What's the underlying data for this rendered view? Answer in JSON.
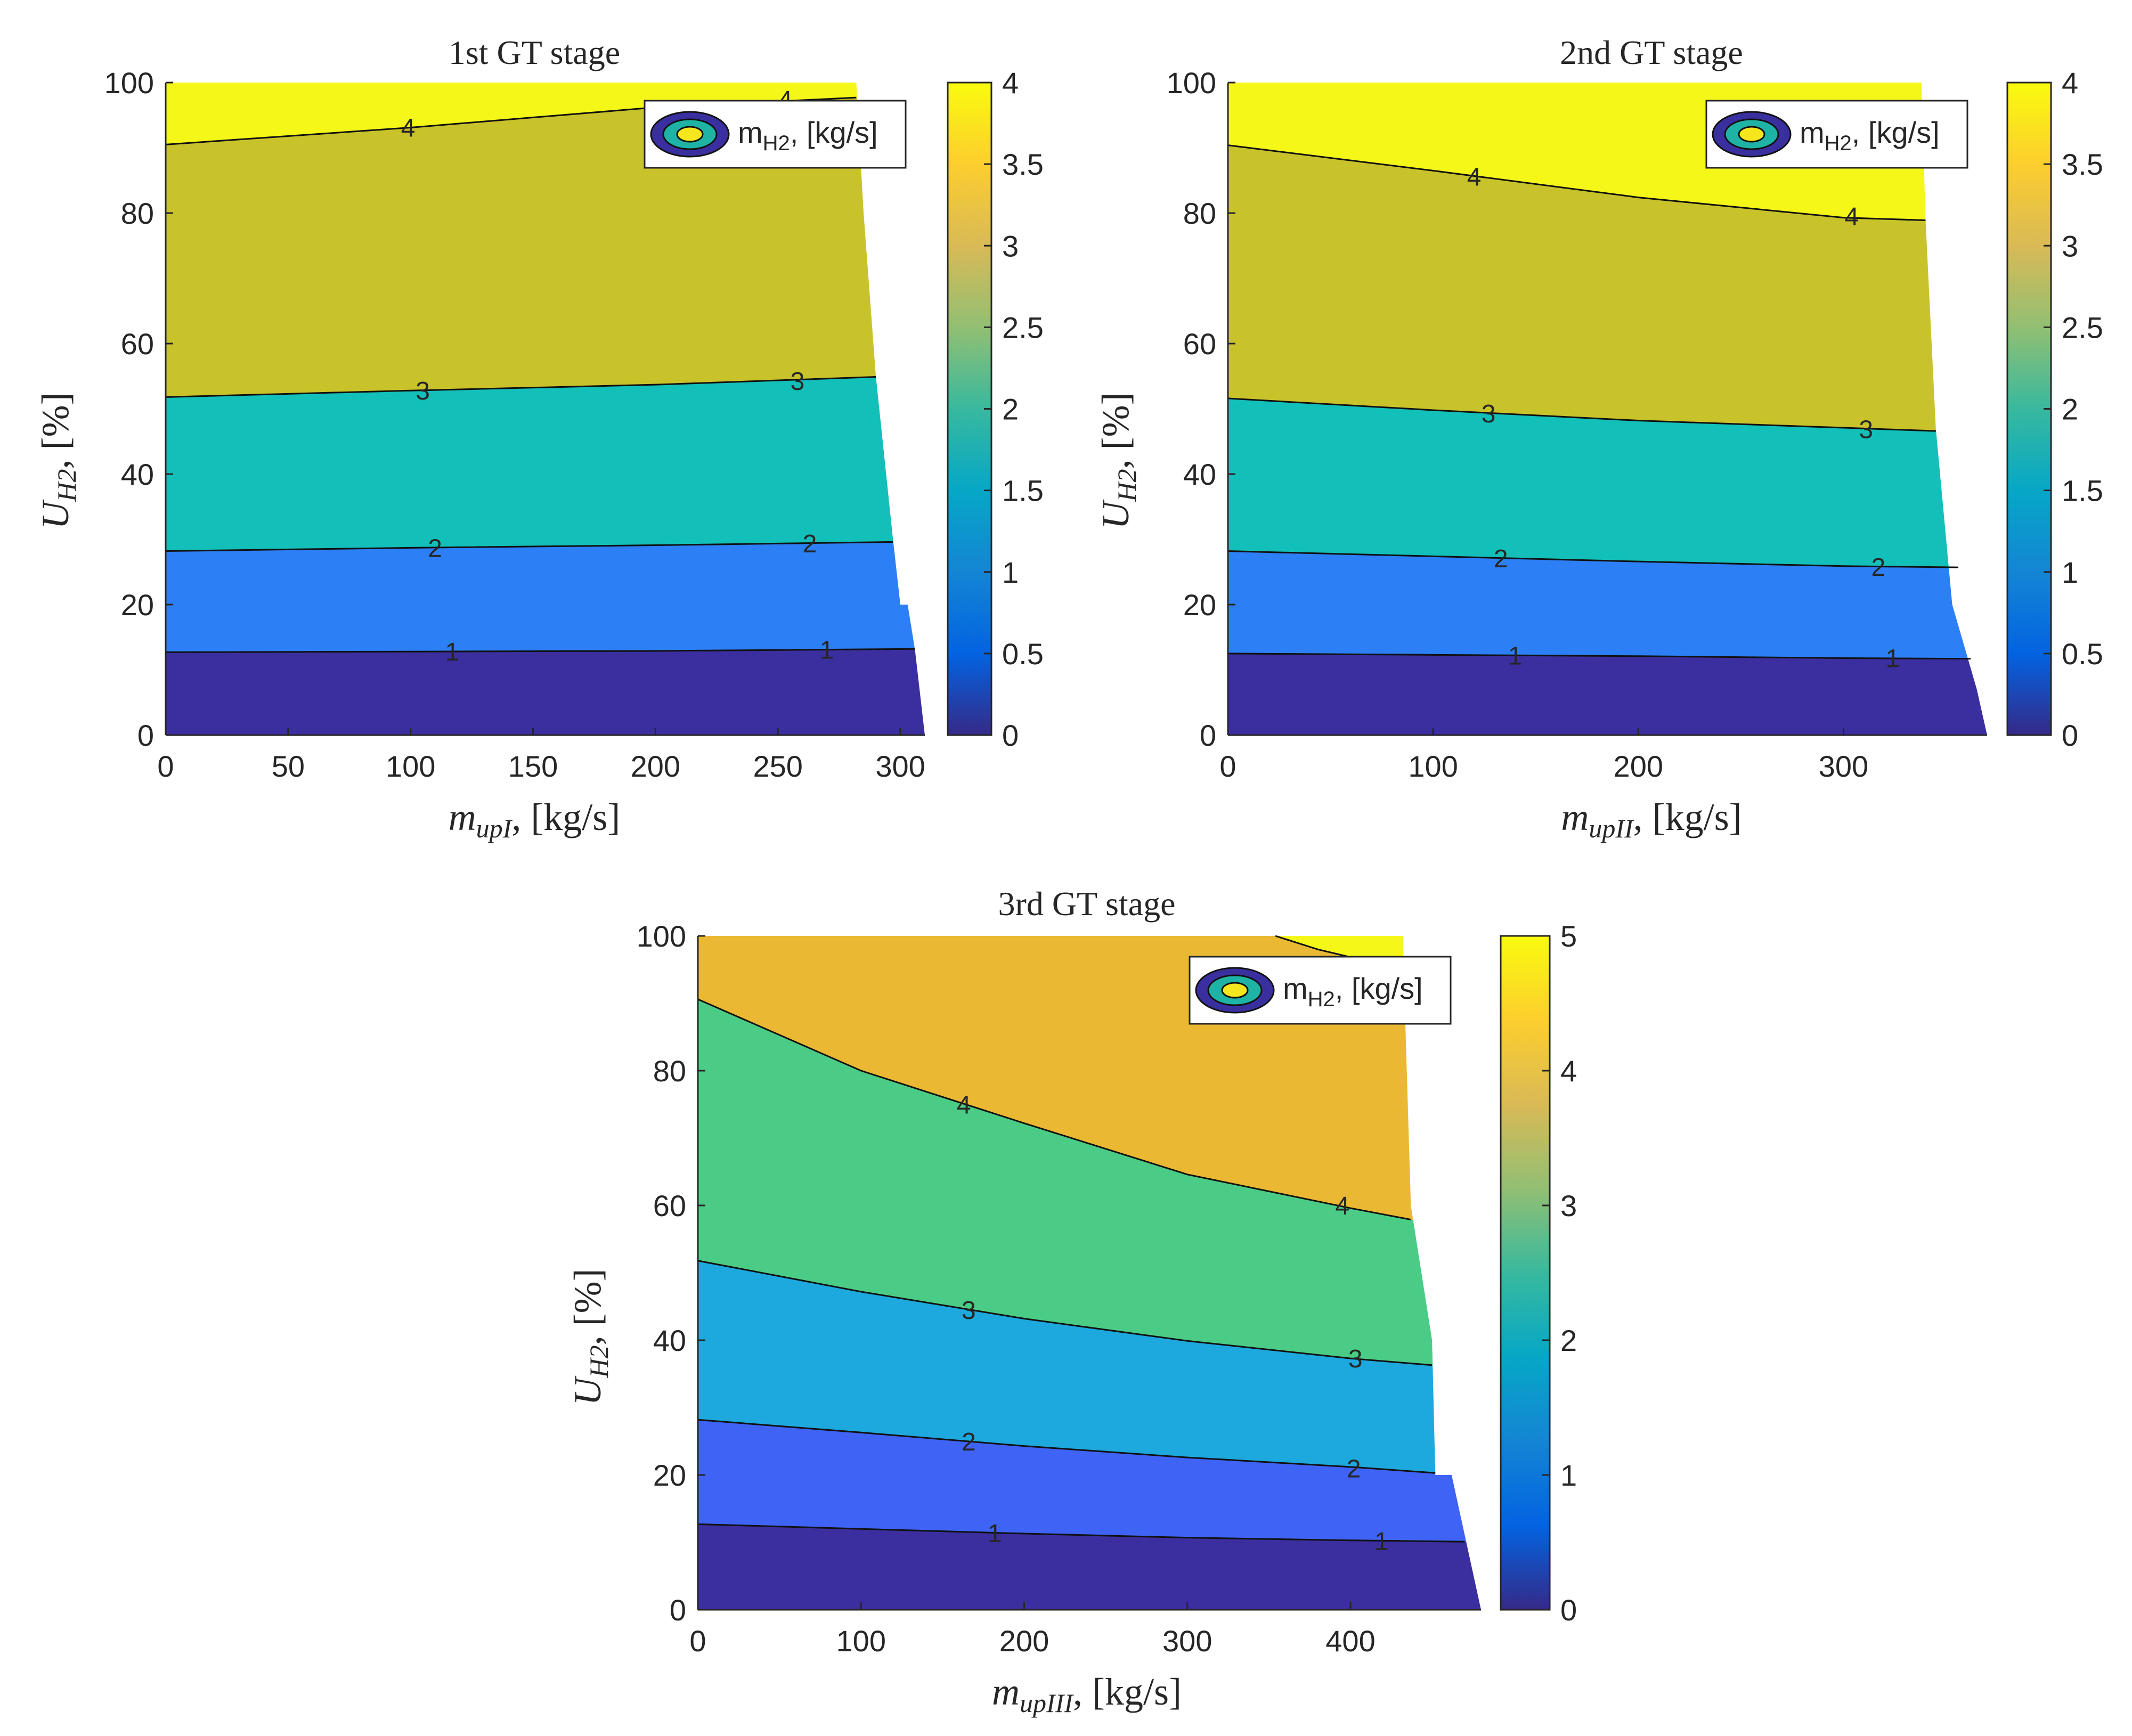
{
  "figure": {
    "description_units": "Hydrogen mass flow contour maps for three gas turbine stages",
    "colors": {
      "axis": "#262626",
      "contour_line": "#111111",
      "legend_outer": "#3a2f9e",
      "legend_mid": "#1fb3a6",
      "legend_inner": "#f5e61d"
    }
  },
  "chart_data": [
    {
      "id": "stage1",
      "type": "contourf",
      "title": "1st GT stage",
      "xlabel": {
        "var": "m",
        "sub": "upI",
        "units": ", [kg/s]"
      },
      "ylabel": {
        "var": "U",
        "sub": "H2",
        "units": ", [%]"
      },
      "xlim": [
        0,
        310
      ],
      "ylim": [
        0,
        100
      ],
      "xticks": [
        "0",
        "50",
        "100",
        "150",
        "200",
        "250",
        "300"
      ],
      "xtick_values": [
        0,
        50,
        100,
        150,
        200,
        250,
        300
      ],
      "yticks": [
        "0",
        "20",
        "40",
        "60",
        "80",
        "100"
      ],
      "ytick_values": [
        0,
        20,
        40,
        60,
        80,
        100
      ],
      "clim": [
        0,
        4
      ],
      "colorbar_ticks": [
        "0",
        "0.5",
        "1",
        "1.5",
        "2",
        "2.5",
        "3",
        "3.5",
        "4"
      ],
      "colorbar_values": [
        0,
        0.5,
        1,
        1.5,
        2,
        2.5,
        3,
        3.5,
        4
      ],
      "legend": {
        "text": "m",
        "sub": "H2",
        "units": ", [kg/s]"
      },
      "boundary": [
        [
          282,
          100
        ],
        [
          285,
          80
        ],
        [
          290,
          55
        ],
        [
          297,
          30
        ],
        [
          300,
          20
        ],
        [
          303,
          20
        ],
        [
          306,
          13
        ],
        [
          310,
          0
        ]
      ],
      "levels": [
        {
          "level": 1,
          "points": [
            [
              0,
              12.7
            ],
            [
              100,
              12.8
            ],
            [
              200,
              12.9
            ],
            [
              306,
              13.2
            ]
          ],
          "labels": [
            [
              117,
              12.8
            ],
            [
              270,
              13.1
            ]
          ]
        },
        {
          "level": 2,
          "points": [
            [
              0,
              28.2
            ],
            [
              100,
              28.7
            ],
            [
              200,
              29.1
            ],
            [
              297,
              29.6
            ]
          ],
          "labels": [
            [
              110,
              28.7
            ],
            [
              263,
              29.4
            ]
          ]
        },
        {
          "level": 3,
          "points": [
            [
              0,
              51.8
            ],
            [
              100,
              52.8
            ],
            [
              200,
              53.7
            ],
            [
              290,
              54.9
            ]
          ],
          "labels": [
            [
              105,
              52.8
            ],
            [
              258,
              54.3
            ]
          ]
        },
        {
          "level": 4,
          "points": [
            [
              0,
              90.5
            ],
            [
              100,
              93.1
            ],
            [
              200,
              96.2
            ],
            [
              282,
              97.7
            ]
          ],
          "labels": [
            [
              99,
              93.1
            ],
            [
              253,
              97.4
            ]
          ]
        }
      ],
      "band_colors": [
        "#3b2fa0",
        "#2d7ff5",
        "#13bfb9",
        "#c9c32b",
        "#f5f719"
      ]
    },
    {
      "id": "stage2",
      "type": "contourf",
      "title": "2nd GT stage",
      "xlabel": {
        "var": "m",
        "sub": "upII",
        "units": ", [kg/s]"
      },
      "ylabel": {
        "var": "U",
        "sub": "H2",
        "units": ", [%]"
      },
      "xlim": [
        0,
        370
      ],
      "ylim": [
        0,
        100
      ],
      "xticks": [
        "0",
        "100",
        "200",
        "300"
      ],
      "xtick_values": [
        0,
        100,
        200,
        300
      ],
      "yticks": [
        "0",
        "20",
        "40",
        "60",
        "80",
        "100"
      ],
      "ytick_values": [
        0,
        20,
        40,
        60,
        80,
        100
      ],
      "clim": [
        0,
        4
      ],
      "colorbar_ticks": [
        "0",
        "0.5",
        "1",
        "1.5",
        "2",
        "2.5",
        "3",
        "3.5",
        "4"
      ],
      "colorbar_values": [
        0,
        0.5,
        1,
        1.5,
        2,
        2.5,
        3,
        3.5,
        4
      ],
      "legend": {
        "text": "m",
        "sub": "H2",
        "units": ", [kg/s]"
      },
      "boundary": [
        [
          338,
          100
        ],
        [
          340,
          79
        ],
        [
          345,
          47
        ],
        [
          353,
          20
        ],
        [
          365,
          7
        ],
        [
          370,
          0
        ]
      ],
      "levels": [
        {
          "level": 1,
          "points": [
            [
              0,
              12.5
            ],
            [
              100,
              12.3
            ],
            [
              200,
              12.1
            ],
            [
              300,
              11.8
            ],
            [
              362,
              11.7
            ]
          ],
          "labels": [
            [
              140,
              12.2
            ],
            [
              324,
              11.8
            ]
          ]
        },
        {
          "level": 2,
          "points": [
            [
              0,
              28.2
            ],
            [
              100,
              27.4
            ],
            [
              200,
              26.6
            ],
            [
              300,
              25.9
            ],
            [
              356,
              25.7
            ]
          ],
          "labels": [
            [
              133,
              27.1
            ],
            [
              317,
              25.8
            ]
          ]
        },
        {
          "level": 3,
          "points": [
            [
              0,
              51.6
            ],
            [
              100,
              49.8
            ],
            [
              200,
              48.2
            ],
            [
              300,
              47.1
            ],
            [
              345,
              46.6
            ]
          ],
          "labels": [
            [
              127,
              49.3
            ],
            [
              311,
              46.9
            ]
          ]
        },
        {
          "level": 4,
          "points": [
            [
              0,
              90.4
            ],
            [
              100,
              86.5
            ],
            [
              200,
              82.4
            ],
            [
              300,
              79.3
            ],
            [
              340,
              78.9
            ]
          ],
          "labels": [
            [
              120,
              85.6
            ],
            [
              304,
              79.5
            ]
          ]
        }
      ],
      "band_colors": [
        "#3b2fa0",
        "#2d7ff5",
        "#13bfb9",
        "#c9c32b",
        "#f5f719"
      ]
    },
    {
      "id": "stage3",
      "type": "contourf",
      "title": "3rd GT stage",
      "xlabel": {
        "var": "m",
        "sub": "upIII",
        "units": ", [kg/s]"
      },
      "ylabel": {
        "var": "U",
        "sub": "H2",
        "units": ", [%]"
      },
      "xlim": [
        0,
        480
      ],
      "ylim": [
        0,
        100
      ],
      "xticks": [
        "0",
        "100",
        "200",
        "300",
        "400"
      ],
      "xtick_values": [
        0,
        100,
        200,
        300,
        400
      ],
      "yticks": [
        "0",
        "20",
        "40",
        "60",
        "80",
        "100"
      ],
      "ytick_values": [
        0,
        20,
        40,
        60,
        80,
        100
      ],
      "clim": [
        0,
        5
      ],
      "colorbar_ticks": [
        "0",
        "1",
        "2",
        "3",
        "4",
        "5"
      ],
      "colorbar_values": [
        0,
        1,
        2,
        3,
        4,
        5
      ],
      "legend": {
        "text": "m",
        "sub": "H2",
        "units": ", [kg/s]"
      },
      "boundary": [
        [
          432,
          100
        ],
        [
          437,
          60
        ],
        [
          450,
          40
        ],
        [
          452,
          20
        ],
        [
          462,
          20
        ],
        [
          480,
          0
        ]
      ],
      "levels": [
        {
          "level": 1,
          "points": [
            [
              0,
              12.7
            ],
            [
              100,
              12.0
            ],
            [
              200,
              11.3
            ],
            [
              300,
              10.7
            ],
            [
              400,
              10.3
            ],
            [
              470,
              10.1
            ]
          ],
          "labels": [
            [
              182,
              11.4
            ],
            [
              419,
              10.2
            ]
          ]
        },
        {
          "level": 2,
          "points": [
            [
              0,
              28.2
            ],
            [
              100,
              26.3
            ],
            [
              200,
              24.3
            ],
            [
              300,
              22.6
            ],
            [
              400,
              21.2
            ],
            [
              452,
              20.3
            ]
          ],
          "labels": [
            [
              166,
              25.0
            ],
            [
              402,
              21.0
            ]
          ]
        },
        {
          "level": 3,
          "points": [
            [
              0,
              51.8
            ],
            [
              100,
              47.2
            ],
            [
              200,
              43.2
            ],
            [
              300,
              39.9
            ],
            [
              400,
              37.3
            ],
            [
              450,
              36.3
            ]
          ],
          "labels": [
            [
              166,
              44.5
            ],
            [
              403,
              37.3
            ]
          ]
        },
        {
          "level": 4,
          "points": [
            [
              0,
              90.6
            ],
            [
              100,
              80.0
            ],
            [
              200,
              72.2
            ],
            [
              300,
              64.6
            ],
            [
              400,
              59.6
            ],
            [
              437,
              57.9
            ]
          ],
          "labels": [
            [
              163,
              75.0
            ],
            [
              395,
              60.0
            ]
          ]
        },
        {
          "level": 5,
          "points": [
            [
              354,
              100
            ],
            [
              380,
              98
            ],
            [
              432,
              95
            ]
          ],
          "labels": []
        }
      ],
      "band_colors": [
        "#3b2fa0",
        "#3f63f5",
        "#1da8de",
        "#4bcc86",
        "#eab832",
        "#f5f719"
      ]
    }
  ]
}
